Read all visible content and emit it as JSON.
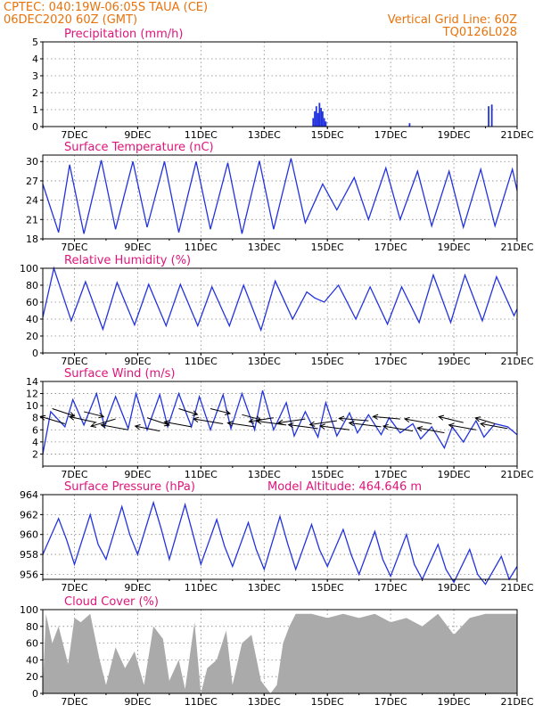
{
  "header": {
    "line1_left": "CPTEC:   040:19W-06:05S   TAUA (CE)",
    "line2_left": "06DEC2020 60Z (GMT)",
    "line2_right": "Vertical Grid Line: 60Z",
    "line3_right": "TQ0126L028"
  },
  "colors": {
    "header": "#e8730c",
    "title": "#e0147a",
    "series": "#2233dd",
    "cloud": "#aaaaaa"
  },
  "x_ticks": [
    "7DEC",
    "9DEC",
    "11DEC",
    "13DEC",
    "15DEC",
    "17DEC",
    "19DEC",
    "21DEC"
  ],
  "chart_data": [
    {
      "id": "precip",
      "type": "bar",
      "title": "Precipitation (mm/h)",
      "ylim": [
        0,
        5
      ],
      "yticks": [
        0,
        1,
        2,
        3,
        4,
        5
      ],
      "x_unit": "days since 6DEC2020 00Z",
      "xlim": [
        6.0,
        21.0
      ],
      "x": [
        14.55,
        14.6,
        14.65,
        14.7,
        14.75,
        14.8,
        14.85,
        14.9,
        14.95,
        17.6,
        20.1,
        20.2
      ],
      "values": [
        0.5,
        0.9,
        1.2,
        0.8,
        1.4,
        1.1,
        0.9,
        0.5,
        0.3,
        0.2,
        1.2,
        1.3
      ]
    },
    {
      "id": "temp",
      "type": "line",
      "title": "Surface Temperature (nC)",
      "ylim": [
        18,
        31
      ],
      "yticks": [
        18,
        21,
        24,
        27,
        30
      ],
      "x": [
        6.0,
        6.5,
        6.85,
        7.3,
        7.85,
        8.3,
        8.85,
        9.3,
        9.85,
        10.3,
        10.85,
        11.3,
        11.85,
        12.3,
        12.85,
        13.3,
        13.85,
        14.3,
        14.85,
        15.3,
        15.85,
        16.3,
        16.85,
        17.3,
        17.85,
        18.3,
        18.85,
        19.3,
        19.85,
        20.3,
        20.85,
        21.0
      ],
      "values": [
        26.5,
        19.0,
        29.5,
        18.8,
        30.2,
        19.5,
        30.0,
        19.8,
        30.0,
        19.0,
        30.0,
        19.5,
        29.8,
        18.8,
        30.1,
        19.5,
        30.5,
        20.5,
        26.5,
        22.5,
        27.5,
        21.0,
        29.0,
        21.0,
        28.5,
        20.0,
        28.5,
        19.8,
        28.8,
        20.0,
        28.8,
        25.5
      ]
    },
    {
      "id": "rh",
      "type": "line",
      "title": "Relative Humidity (%)",
      "ylim": [
        0,
        100
      ],
      "yticks": [
        0,
        20,
        40,
        60,
        80,
        100
      ],
      "x": [
        6.0,
        6.35,
        6.9,
        7.35,
        7.9,
        8.35,
        8.9,
        9.35,
        9.9,
        10.35,
        10.9,
        11.35,
        11.9,
        12.35,
        12.9,
        13.35,
        13.9,
        14.35,
        14.6,
        14.9,
        15.35,
        15.9,
        16.35,
        16.9,
        17.35,
        17.9,
        18.35,
        18.9,
        19.35,
        19.9,
        20.35,
        20.9,
        21.0
      ],
      "values": [
        42,
        100,
        38,
        84,
        28,
        83,
        33,
        81,
        32,
        81,
        32,
        78,
        32,
        80,
        27,
        85,
        40,
        72,
        65,
        60,
        80,
        40,
        78,
        34,
        78,
        36,
        92,
        36,
        92,
        38,
        90,
        44,
        52
      ]
    },
    {
      "id": "wind",
      "type": "line",
      "title": "Surface Wind (m/s)",
      "ylim": [
        0,
        14
      ],
      "yticks": [
        2,
        4,
        6,
        8,
        10,
        12,
        14
      ],
      "x": [
        6.0,
        6.25,
        6.7,
        6.95,
        7.3,
        7.7,
        7.95,
        8.3,
        8.7,
        8.95,
        9.3,
        9.7,
        9.95,
        10.3,
        10.7,
        10.95,
        11.3,
        11.7,
        11.95,
        12.3,
        12.7,
        12.95,
        13.3,
        13.7,
        13.95,
        14.3,
        14.7,
        14.95,
        15.3,
        15.7,
        15.95,
        16.3,
        16.7,
        16.95,
        17.3,
        17.7,
        17.95,
        18.3,
        18.7,
        18.95,
        19.3,
        19.7,
        19.95,
        20.3,
        20.7,
        21.0
      ],
      "values": [
        2.0,
        9.0,
        6.5,
        11.0,
        6.8,
        12.0,
        6.5,
        11.5,
        6.2,
        12.0,
        6.0,
        11.8,
        6.5,
        12.0,
        6.5,
        11.5,
        6.0,
        11.8,
        6.2,
        12.0,
        6.0,
        12.5,
        6.0,
        10.5,
        5.0,
        9.0,
        4.8,
        10.5,
        5.0,
        8.8,
        5.5,
        8.5,
        5.2,
        8.0,
        5.5,
        7.0,
        4.5,
        6.5,
        3.0,
        6.5,
        4.0,
        7.5,
        4.8,
        7.0,
        6.5,
        5.2
      ]
    },
    {
      "id": "pressure",
      "type": "line",
      "title": "Surface Pressure (hPa)",
      "subtitle": "Model Altitude: 464.646 m",
      "ylim": [
        955.5,
        964
      ],
      "yticks": [
        956,
        958,
        960,
        962,
        964
      ],
      "x": [
        6.0,
        6.5,
        6.75,
        7.0,
        7.5,
        7.75,
        8.0,
        8.5,
        8.75,
        9.0,
        9.5,
        9.75,
        10.0,
        10.5,
        10.75,
        11.0,
        11.5,
        11.75,
        12.0,
        12.5,
        12.75,
        13.0,
        13.5,
        13.75,
        14.0,
        14.5,
        14.75,
        15.0,
        15.5,
        15.75,
        16.0,
        16.5,
        16.75,
        17.0,
        17.5,
        17.75,
        18.0,
        18.5,
        18.75,
        19.0,
        19.5,
        19.75,
        20.0,
        20.5,
        20.75,
        21.0
      ],
      "values": [
        958.0,
        961.6,
        959.5,
        957.0,
        962.0,
        959.0,
        957.5,
        962.8,
        960.0,
        958.0,
        963.2,
        960.5,
        957.5,
        963.0,
        960.0,
        957.0,
        961.5,
        958.8,
        956.8,
        961.2,
        958.5,
        956.5,
        961.8,
        959.0,
        956.5,
        961.0,
        958.5,
        956.8,
        960.5,
        958.0,
        956.0,
        960.3,
        957.5,
        955.8,
        960.0,
        957.0,
        955.5,
        959.0,
        956.5,
        955.2,
        958.5,
        956.0,
        955.0,
        957.8,
        955.5,
        956.8
      ]
    },
    {
      "id": "cloud",
      "type": "area",
      "title": "Cloud Cover (%)",
      "ylim": [
        0,
        100
      ],
      "yticks": [
        0,
        20,
        40,
        60,
        80,
        100
      ],
      "x": [
        6.0,
        6.1,
        6.3,
        6.5,
        6.8,
        7.0,
        7.2,
        7.5,
        7.8,
        8.0,
        8.3,
        8.6,
        8.9,
        9.2,
        9.5,
        9.8,
        10.0,
        10.3,
        10.5,
        10.8,
        11.0,
        11.2,
        11.5,
        11.8,
        12.0,
        12.3,
        12.6,
        12.9,
        13.2,
        13.4,
        13.6,
        13.8,
        14.0,
        14.5,
        15.0,
        15.5,
        16.0,
        16.5,
        17.0,
        17.5,
        18.0,
        18.5,
        19.0,
        19.5,
        20.0,
        20.5,
        21.0
      ],
      "values": [
        5,
        95,
        60,
        80,
        35,
        90,
        85,
        95,
        40,
        10,
        55,
        30,
        50,
        10,
        80,
        65,
        15,
        40,
        5,
        85,
        0,
        30,
        40,
        75,
        10,
        60,
        70,
        15,
        0,
        10,
        60,
        80,
        95,
        95,
        90,
        95,
        90,
        95,
        85,
        90,
        80,
        95,
        70,
        90,
        95,
        95,
        95
      ]
    }
  ],
  "wind_vectors": {
    "x": [
      6.3,
      6.7,
      7.3,
      7.7,
      8.3,
      8.7,
      9.3,
      9.7,
      10.3,
      10.7,
      11.3,
      11.7,
      12.3,
      12.7,
      13.3,
      13.7,
      14.3,
      14.7,
      15.3,
      15.7,
      16.3,
      16.7,
      17.3,
      17.7,
      18.3,
      18.7,
      19.3,
      19.7,
      20.3,
      20.7
    ],
    "y": [
      9.5,
      7.0,
      9.0,
      7.2,
      7.8,
      6.0,
      8.0,
      5.8,
      9.5,
      6.5,
      9.5,
      7.0,
      8.5,
      6.5,
      8.0,
      6.8,
      7.8,
      6.2,
      7.5,
      6.0,
      7.5,
      6.5,
      7.8,
      5.8,
      7.0,
      5.5,
      7.2,
      6.0,
      7.0,
      6.2
    ],
    "u": [
      4.5,
      -5.0,
      4.0,
      -5.5,
      -5.0,
      -5.5,
      4.5,
      -5.0,
      3.8,
      -5.5,
      4.0,
      -6.0,
      3.8,
      -5.5,
      -5.0,
      -6.0,
      -5.5,
      -6.0,
      -5.5,
      -6.0,
      -6.0,
      -6.5,
      -5.5,
      -6.0,
      -5.5,
      -5.5,
      -5.0,
      -5.5,
      -4.0,
      -5.5
    ],
    "v": [
      -1.5,
      1.5,
      -1.0,
      1.2,
      -1.5,
      1.0,
      -1.5,
      1.0,
      -1.2,
      1.0,
      -1.0,
      1.0,
      -1.0,
      0.8,
      -0.8,
      0.8,
      -0.8,
      0.8,
      -0.8,
      0.8,
      0.5,
      0.8,
      0.5,
      1.0,
      1.0,
      1.0,
      1.2,
      1.0,
      1.2,
      1.0
    ]
  }
}
